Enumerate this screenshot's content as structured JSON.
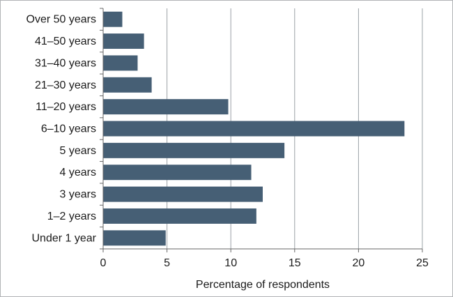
{
  "chart_data": {
    "type": "bar",
    "orientation": "horizontal",
    "categories": [
      "Over 50 years",
      "41–50 years",
      "31–40 years",
      "21–30 years",
      "11–20 years",
      "6–10 years",
      "5 years",
      "4 years",
      "3 years",
      "1–2 years",
      "Under 1 year"
    ],
    "values": [
      1.5,
      3.2,
      2.7,
      3.8,
      9.8,
      23.6,
      14.2,
      11.6,
      12.5,
      12.0,
      4.9
    ],
    "xlabel": "Percentage of respondents",
    "ylabel": "",
    "xlim": [
      0,
      25
    ],
    "xticks": [
      0,
      5,
      10,
      15,
      20,
      25
    ],
    "grid": "vertical",
    "legend": "none",
    "colors": {
      "bar": "#465f75",
      "grid": "#9aa0a6",
      "axis": "#666666"
    }
  }
}
